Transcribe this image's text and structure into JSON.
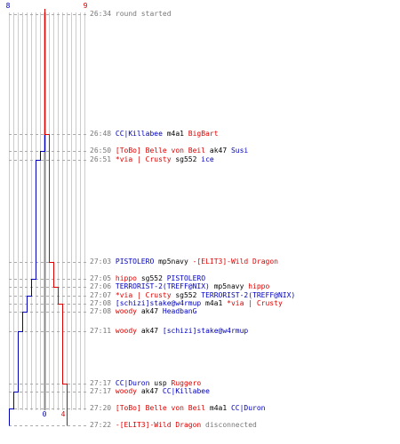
{
  "header": {
    "blue_start": "8",
    "red_start": "9",
    "blue_end": "0",
    "red_end": "4"
  },
  "colors": {
    "blue_team": "#0000bb",
    "red_team": "#dd0000",
    "timestamp": "#777777",
    "weapon": "#000000"
  },
  "events": [
    {
      "time": "26:34",
      "parts": [
        {
          "t": "round started",
          "c": "txt"
        }
      ]
    },
    {
      "time": "26:48",
      "parts": [
        {
          "t": "CC|Killabee",
          "c": "blue"
        },
        {
          "t": " m4a1 ",
          "c": "blk"
        },
        {
          "t": "BigBart",
          "c": "red"
        }
      ]
    },
    {
      "time": "26:50",
      "parts": [
        {
          "t": "[ToBo] Belle von Beil",
          "c": "red"
        },
        {
          "t": " ak47 ",
          "c": "blk"
        },
        {
          "t": "Susi",
          "c": "blue"
        }
      ]
    },
    {
      "time": "26:51",
      "parts": [
        {
          "t": "*via | Crusty",
          "c": "red"
        },
        {
          "t": " sg552 ",
          "c": "blk"
        },
        {
          "t": "ice",
          "c": "blue"
        }
      ]
    },
    {
      "time": "27:03",
      "parts": [
        {
          "t": "PISTOLERO",
          "c": "blue"
        },
        {
          "t": " mp5navy ",
          "c": "blk"
        },
        {
          "t": "-[ELIT3]-Wild Dragon",
          "c": "red"
        }
      ]
    },
    {
      "time": "27:05",
      "parts": [
        {
          "t": "hippo",
          "c": "red"
        },
        {
          "t": " sg552 ",
          "c": "blk"
        },
        {
          "t": "PISTOLERO",
          "c": "blue"
        }
      ]
    },
    {
      "time": "27:06",
      "parts": [
        {
          "t": "TERRORIST-2(TREFF@NIX)",
          "c": "blue"
        },
        {
          "t": " mp5navy ",
          "c": "blk"
        },
        {
          "t": "hippo",
          "c": "red"
        }
      ]
    },
    {
      "time": "27:07",
      "parts": [
        {
          "t": "*via | Crusty",
          "c": "red"
        },
        {
          "t": " sg552 ",
          "c": "blk"
        },
        {
          "t": "TERRORIST-2(TREFF@NIX)",
          "c": "blue"
        }
      ]
    },
    {
      "time": "27:08",
      "parts": [
        {
          "t": "[schizi]stake@w4rmup",
          "c": "blue"
        },
        {
          "t": " m4a1 ",
          "c": "blk"
        },
        {
          "t": "*via | Crusty",
          "c": "red"
        }
      ]
    },
    {
      "time": "27:08",
      "parts": [
        {
          "t": "woody",
          "c": "red"
        },
        {
          "t": " ak47 ",
          "c": "blk"
        },
        {
          "t": "HeadbanG",
          "c": "blue"
        }
      ]
    },
    {
      "time": "27:11",
      "parts": [
        {
          "t": "woody",
          "c": "red"
        },
        {
          "t": " ak47 ",
          "c": "blk"
        },
        {
          "t": "[schizi]stake@w4rmup",
          "c": "blue"
        }
      ]
    },
    {
      "time": "27:17",
      "parts": [
        {
          "t": "CC|Duron",
          "c": "blue"
        },
        {
          "t": " usp ",
          "c": "blk"
        },
        {
          "t": "Ruggero",
          "c": "red"
        }
      ]
    },
    {
      "time": "27:17",
      "parts": [
        {
          "t": "woody",
          "c": "red"
        },
        {
          "t": " ak47 ",
          "c": "blk"
        },
        {
          "t": "CC|Killabee",
          "c": "blue"
        }
      ]
    },
    {
      "time": "27:20",
      "parts": [
        {
          "t": "[ToBo] Belle von Beil",
          "c": "red"
        },
        {
          "t": " m4a1 ",
          "c": "blk"
        },
        {
          "t": "CC|Duron",
          "c": "blue"
        }
      ]
    },
    {
      "time": "27:22",
      "parts": [
        {
          "t": "-[ELIT3]-Wild Dragon",
          "c": "red"
        },
        {
          "t": " disconnected",
          "c": "txt"
        }
      ]
    }
  ],
  "counts": {
    "blue": [
      8,
      8,
      7,
      6,
      6,
      5,
      5,
      4,
      4,
      3,
      2,
      2,
      1,
      0,
      0
    ],
    "red": [
      9,
      8,
      8,
      8,
      7,
      7,
      6,
      6,
      5,
      5,
      5,
      4,
      4,
      4,
      4
    ]
  }
}
